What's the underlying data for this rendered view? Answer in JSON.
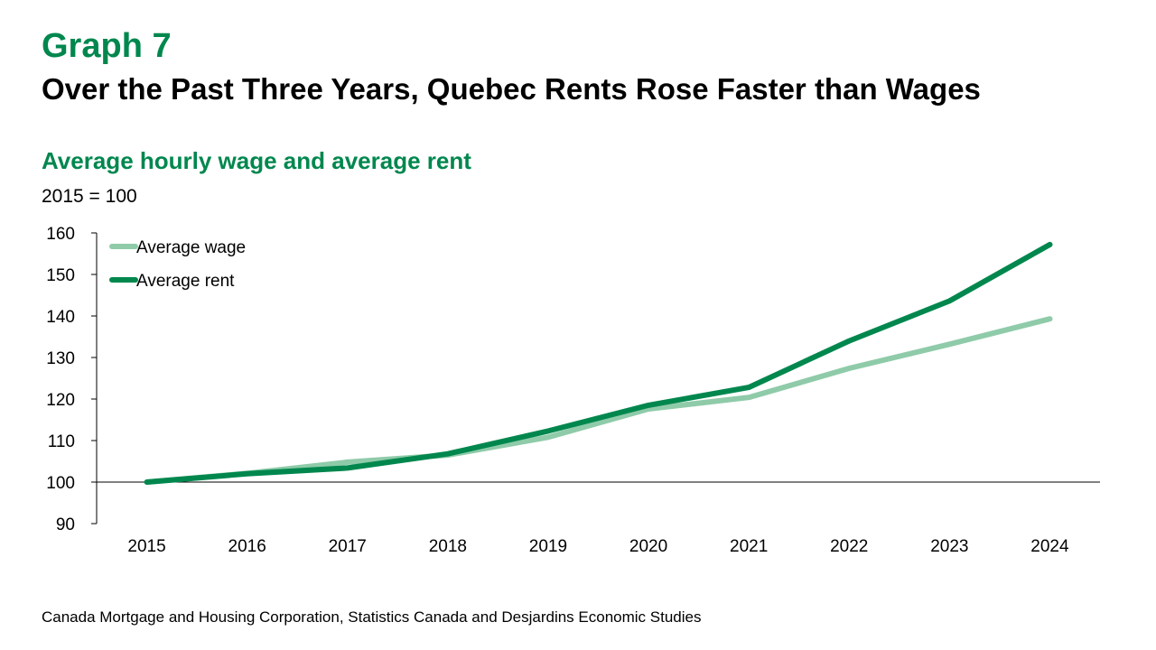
{
  "header": {
    "graph_number": "Graph 7",
    "title": "Over the Past Three Years, Quebec Rents Rose Faster than Wages"
  },
  "subtitle": "Average hourly wage and average rent",
  "unit_label": "2015 = 100",
  "source": "Canada Mortgage and Housing Corporation, Statistics Canada and Desjardins Economic Studies",
  "colors": {
    "accent": "#00874E",
    "wage": "#8FCBA9",
    "rent": "#00874E",
    "axis": "#000000"
  },
  "chart_data": {
    "type": "line",
    "title": "Average hourly wage and average rent",
    "ylabel": "2015 = 100",
    "xlabel": "",
    "categories": [
      "2015",
      "2016",
      "2017",
      "2018",
      "2019",
      "2020",
      "2021",
      "2022",
      "2023",
      "2024"
    ],
    "ylim": [
      90,
      160
    ],
    "yticks": [
      90,
      100,
      110,
      120,
      130,
      140,
      150,
      160
    ],
    "baseline": 100,
    "grid": false,
    "legend_position": "top-left",
    "series": [
      {
        "name": "Average wage",
        "color": "#8FCBA9",
        "values": [
          100,
          102.1,
          104.8,
          106.5,
          110.8,
          117.6,
          120.4,
          127.4,
          133.2,
          139.3
        ]
      },
      {
        "name": "Average rent",
        "color": "#00874E",
        "values": [
          100,
          102.0,
          103.4,
          106.8,
          112.3,
          118.5,
          122.8,
          134.0,
          143.6,
          157.2
        ]
      }
    ]
  }
}
